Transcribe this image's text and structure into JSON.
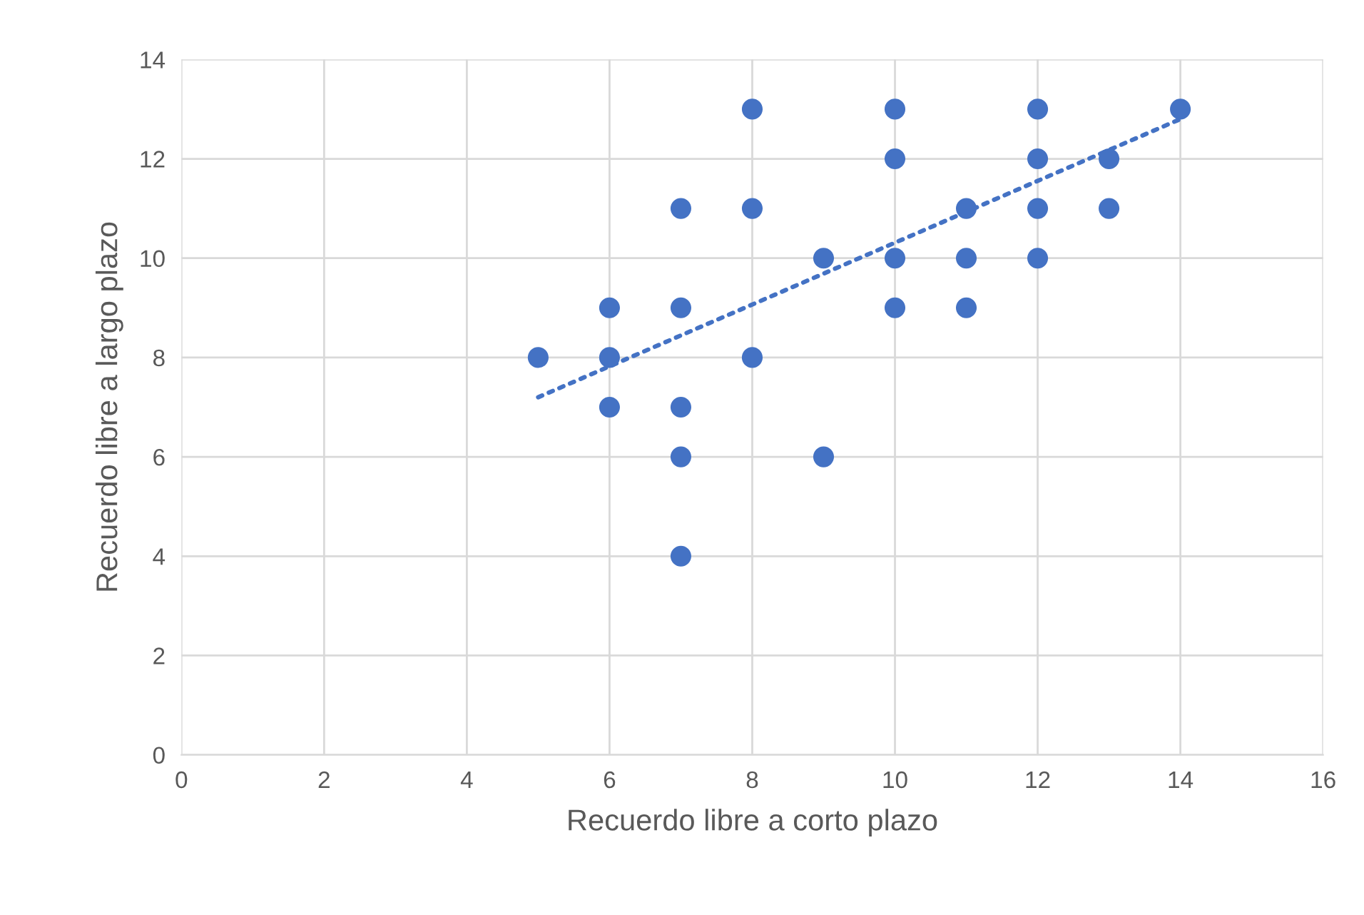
{
  "chart_data": {
    "type": "scatter",
    "xlabel": "Recuerdo libre a corto plazo",
    "ylabel": "Recuerdo libre a largo plazo",
    "xlim": [
      0,
      16
    ],
    "xticks": [
      0,
      2,
      4,
      6,
      8,
      10,
      12,
      14,
      16
    ],
    "ylim": [
      0,
      14
    ],
    "yticks": [
      0,
      2,
      4,
      6,
      8,
      10,
      12,
      14
    ],
    "grid": true,
    "series": [
      {
        "color": "#4472c4",
        "marker": "circle",
        "x": [
          5,
          6,
          6,
          6,
          7,
          7,
          7,
          7,
          7,
          8,
          8,
          8,
          9,
          9,
          10,
          10,
          10,
          10,
          11,
          11,
          11,
          12,
          12,
          12,
          12,
          13,
          13,
          14
        ],
        "values": [
          8,
          9,
          8,
          7,
          11,
          9,
          7,
          6,
          4,
          13,
          11,
          8,
          10,
          6,
          13,
          12,
          10,
          9,
          11,
          10,
          9,
          13,
          12,
          11,
          10,
          12,
          11,
          13
        ]
      },
      {
        "type": "line",
        "color": "#4472c4",
        "line_style": "dotted",
        "marker": "none",
        "x": [
          5,
          14
        ],
        "values": [
          7.2,
          12.8
        ]
      }
    ]
  }
}
